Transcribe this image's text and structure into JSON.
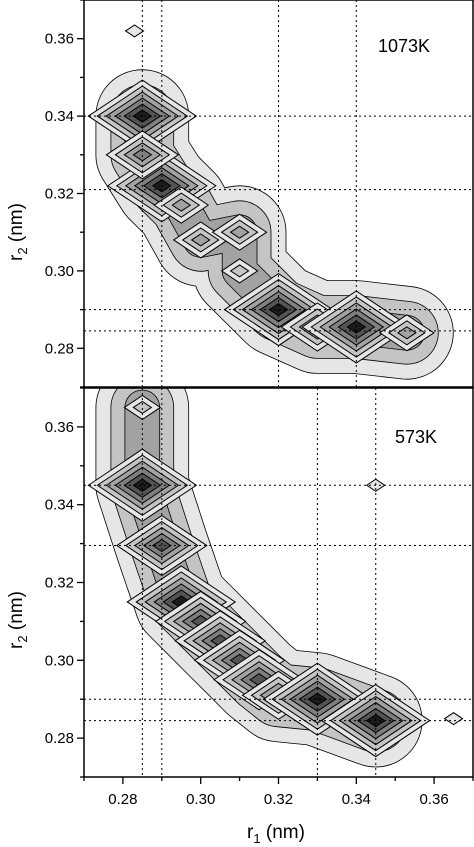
{
  "chart_data": [
    {
      "type": "heatmap",
      "title": "",
      "annotation": "1073K",
      "xlabel": "r",
      "xlabel_sub": "1",
      "xlabel_unit": " (nm)",
      "ylabel": "r",
      "ylabel_sub": "2",
      "ylabel_unit": " (nm)",
      "xlim": [
        0.27,
        0.37
      ],
      "ylim": [
        0.27,
        0.37
      ],
      "yticks": [
        "0.28",
        "0.30",
        "0.32",
        "0.34",
        "0.36"
      ],
      "grid": false,
      "reference_x": [
        0.285,
        0.29,
        0.32,
        0.34
      ],
      "reference_y": [
        0.2845,
        0.29,
        0.321,
        0.34
      ],
      "contour_levels": 6,
      "peaks": [
        {
          "x": 0.285,
          "y": 0.34,
          "level": 6
        },
        {
          "x": 0.29,
          "y": 0.322,
          "level": 6
        },
        {
          "x": 0.285,
          "y": 0.33,
          "level": 4
        },
        {
          "x": 0.295,
          "y": 0.317,
          "level": 3
        },
        {
          "x": 0.3,
          "y": 0.308,
          "level": 3
        },
        {
          "x": 0.31,
          "y": 0.31,
          "level": 3
        },
        {
          "x": 0.31,
          "y": 0.3,
          "level": 2
        },
        {
          "x": 0.32,
          "y": 0.29,
          "level": 6
        },
        {
          "x": 0.33,
          "y": 0.2855,
          "level": 4
        },
        {
          "x": 0.34,
          "y": 0.2855,
          "level": 6
        },
        {
          "x": 0.353,
          "y": 0.284,
          "level": 3
        },
        {
          "x": 0.283,
          "y": 0.362,
          "level": 1
        }
      ]
    },
    {
      "type": "heatmap",
      "title": "",
      "annotation": "573K",
      "xlabel": "r",
      "xlabel_sub": "1",
      "xlabel_unit": " (nm)",
      "ylabel": "r",
      "ylabel_sub": "2",
      "ylabel_unit": " (nm)",
      "xlim": [
        0.27,
        0.37
      ],
      "ylim": [
        0.27,
        0.37
      ],
      "xticks": [
        "0.28",
        "0.30",
        "0.32",
        "0.34",
        "0.36"
      ],
      "yticks": [
        "0.28",
        "0.30",
        "0.32",
        "0.34",
        "0.36"
      ],
      "grid": false,
      "reference_x": [
        0.285,
        0.29,
        0.33,
        0.345
      ],
      "reference_y": [
        0.2845,
        0.29,
        0.3295,
        0.345
      ],
      "contour_levels": 6,
      "peaks": [
        {
          "x": 0.285,
          "y": 0.345,
          "level": 6
        },
        {
          "x": 0.29,
          "y": 0.3295,
          "level": 5
        },
        {
          "x": 0.295,
          "y": 0.315,
          "level": 6
        },
        {
          "x": 0.3,
          "y": 0.31,
          "level": 5
        },
        {
          "x": 0.305,
          "y": 0.305,
          "level": 5
        },
        {
          "x": 0.31,
          "y": 0.3,
          "level": 5
        },
        {
          "x": 0.315,
          "y": 0.295,
          "level": 5
        },
        {
          "x": 0.32,
          "y": 0.291,
          "level": 4
        },
        {
          "x": 0.33,
          "y": 0.29,
          "level": 6
        },
        {
          "x": 0.345,
          "y": 0.2845,
          "level": 6
        },
        {
          "x": 0.285,
          "y": 0.365,
          "level": 2
        },
        {
          "x": 0.345,
          "y": 0.345,
          "level": 1
        },
        {
          "x": 0.365,
          "y": 0.285,
          "level": 1
        }
      ]
    }
  ]
}
